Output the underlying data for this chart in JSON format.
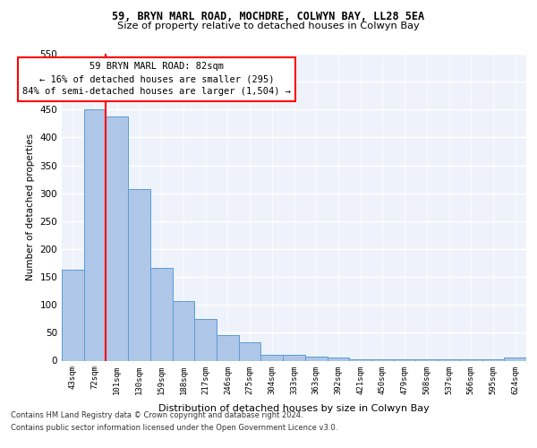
{
  "title1": "59, BRYN MARL ROAD, MOCHDRE, COLWYN BAY, LL28 5EA",
  "title2": "Size of property relative to detached houses in Colwyn Bay",
  "xlabel": "Distribution of detached houses by size in Colwyn Bay",
  "ylabel": "Number of detached properties",
  "categories": [
    "43sqm",
    "72sqm",
    "101sqm",
    "130sqm",
    "159sqm",
    "188sqm",
    "217sqm",
    "246sqm",
    "275sqm",
    "304sqm",
    "333sqm",
    "363sqm",
    "392sqm",
    "421sqm",
    "450sqm",
    "479sqm",
    "508sqm",
    "537sqm",
    "566sqm",
    "595sqm",
    "624sqm"
  ],
  "values": [
    163,
    450,
    437,
    307,
    167,
    106,
    74,
    45,
    33,
    11,
    11,
    8,
    5,
    2,
    2,
    2,
    2,
    2,
    2,
    2,
    5
  ],
  "bar_color": "#aec6e8",
  "bar_edge_color": "#5b9bd5",
  "red_line_x": 1.5,
  "annotation_line1": "59 BRYN MARL ROAD: 82sqm",
  "annotation_line2": "← 16% of detached houses are smaller (295)",
  "annotation_line3": "84% of semi-detached houses are larger (1,504) →",
  "ylim": [
    0,
    550
  ],
  "yticks": [
    0,
    50,
    100,
    150,
    200,
    250,
    300,
    350,
    400,
    450,
    500,
    550
  ],
  "footer_line1": "Contains HM Land Registry data © Crown copyright and database right 2024.",
  "footer_line2": "Contains public sector information licensed under the Open Government Licence v3.0.",
  "plot_bg_color": "#eef3fb",
  "grid_color": "#ffffff",
  "title1_fontsize": 8.5,
  "title2_fontsize": 8.2,
  "xlabel_fontsize": 8.0,
  "ylabel_fontsize": 7.5,
  "xtick_fontsize": 6.5,
  "ytick_fontsize": 7.5,
  "footer_fontsize": 6.0,
  "annot_fontsize": 7.5
}
